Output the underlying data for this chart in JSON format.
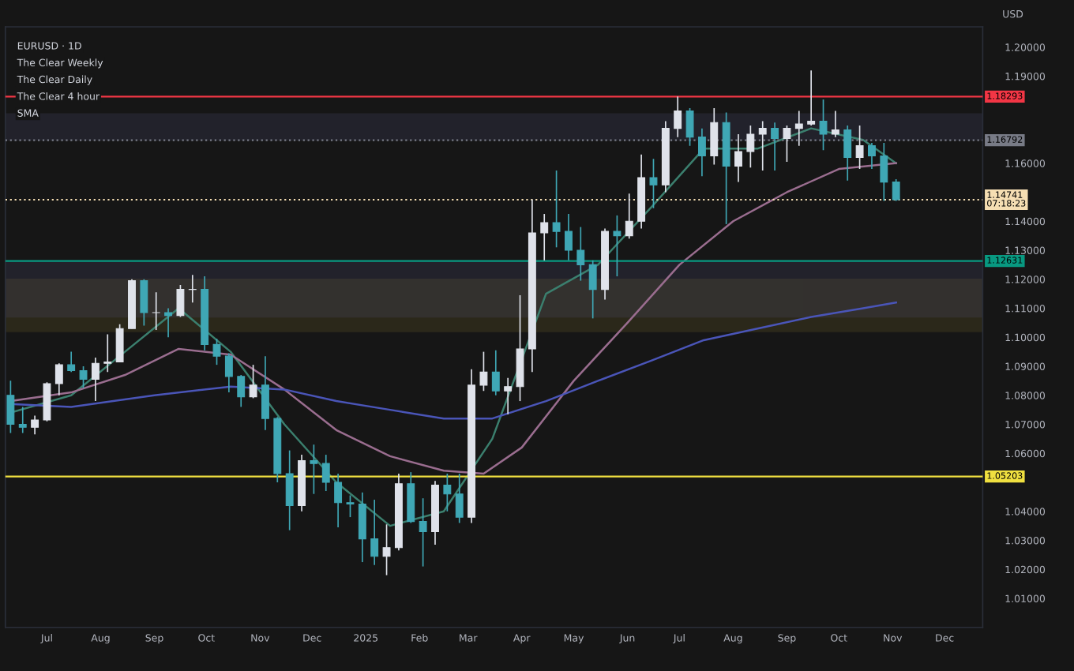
{
  "chart_data": {
    "type": "candlestick",
    "annotations": [
      "EURUSD · 1D",
      "The Clear Weekly",
      "The Clear Daily",
      "The Clear 4 hour",
      "SMA"
    ],
    "ylabel": "USD",
    "x": [
      "2024-06-10",
      "2024-06-17",
      "2024-06-24",
      "2024-07-01",
      "2024-07-08",
      "2024-07-15",
      "2024-07-22",
      "2024-07-29",
      "2024-08-05",
      "2024-08-12",
      "2024-08-19",
      "2024-08-26",
      "2024-09-02",
      "2024-09-09",
      "2024-09-16",
      "2024-09-23",
      "2024-09-30",
      "2024-10-07",
      "2024-10-14",
      "2024-10-21",
      "2024-10-28",
      "2024-11-04",
      "2024-11-11",
      "2024-11-18",
      "2024-11-25",
      "2024-12-02",
      "2024-12-09",
      "2024-12-16",
      "2024-12-23",
      "2024-12-30",
      "2025-01-06",
      "2025-01-13",
      "2025-01-20",
      "2025-01-27",
      "2025-02-03",
      "2025-02-10",
      "2025-02-17",
      "2025-02-24",
      "2025-03-03",
      "2025-03-10",
      "2025-03-17",
      "2025-03-24",
      "2025-03-31",
      "2025-04-07",
      "2025-04-14",
      "2025-04-21",
      "2025-04-28",
      "2025-05-05",
      "2025-05-12",
      "2025-05-19",
      "2025-05-26",
      "2025-06-02",
      "2025-06-09",
      "2025-06-16",
      "2025-06-23",
      "2025-06-30",
      "2025-07-07",
      "2025-07-14",
      "2025-07-21",
      "2025-07-28",
      "2025-08-04",
      "2025-08-11",
      "2025-08-18",
      "2025-08-25",
      "2025-09-01",
      "2025-09-08",
      "2025-09-15",
      "2025-09-22",
      "2025-09-29",
      "2025-10-06",
      "2025-10-13",
      "2025-10-20",
      "2025-10-27",
      "2025-11-03"
    ],
    "ohlc": [
      [
        1.08,
        1.085,
        1.067,
        1.07
      ],
      [
        1.07,
        1.076,
        1.067,
        1.069
      ],
      [
        1.069,
        1.073,
        1.0665,
        1.0715
      ],
      [
        1.0715,
        1.0845,
        1.071,
        1.084
      ],
      [
        1.084,
        1.091,
        1.08,
        1.0905
      ],
      [
        1.0905,
        1.095,
        1.088,
        1.0885
      ],
      [
        1.0885,
        1.09,
        1.0825,
        1.0855
      ],
      [
        1.0855,
        1.093,
        1.078,
        1.091
      ],
      [
        1.091,
        1.101,
        1.088,
        1.0915
      ],
      [
        1.0915,
        1.1045,
        1.0915,
        1.103
      ],
      [
        1.103,
        1.12,
        1.103,
        1.1195
      ],
      [
        1.1195,
        1.12,
        1.104,
        1.1085
      ],
      [
        1.1085,
        1.1155,
        1.1025,
        1.1085
      ],
      [
        1.1085,
        1.11,
        1.1,
        1.1075
      ],
      [
        1.1075,
        1.118,
        1.107,
        1.1165
      ],
      [
        1.1165,
        1.1215,
        1.112,
        1.1165
      ],
      [
        1.1165,
        1.121,
        1.0955,
        1.0975
      ],
      [
        1.0975,
        1.0995,
        1.0905,
        1.0935
      ],
      [
        1.0935,
        1.0945,
        1.081,
        1.0865
      ],
      [
        1.0865,
        1.087,
        1.076,
        1.0795
      ],
      [
        1.0795,
        1.0905,
        1.079,
        1.0835
      ],
      [
        1.0835,
        1.0935,
        1.068,
        1.072
      ],
      [
        1.072,
        1.0725,
        1.05,
        1.053
      ],
      [
        1.053,
        1.061,
        1.0335,
        1.042
      ],
      [
        1.042,
        1.0595,
        1.04,
        1.0575
      ],
      [
        1.0575,
        1.063,
        1.046,
        1.0565
      ],
      [
        1.0565,
        1.0595,
        1.047,
        1.05
      ],
      [
        1.05,
        1.053,
        1.0345,
        1.043
      ],
      [
        1.043,
        1.0455,
        1.038,
        1.0425
      ],
      [
        1.0425,
        1.0465,
        1.0225,
        1.0305
      ],
      [
        1.0305,
        1.044,
        1.0215,
        1.0245
      ],
      [
        1.0245,
        1.0355,
        1.018,
        1.0275
      ],
      [
        1.0275,
        1.053,
        1.0265,
        1.0495
      ],
      [
        1.0495,
        1.0535,
        1.036,
        1.0365
      ],
      [
        1.0365,
        1.0445,
        1.021,
        1.033
      ],
      [
        1.033,
        1.0505,
        1.0285,
        1.049
      ],
      [
        1.049,
        1.053,
        1.04,
        1.046
      ],
      [
        1.046,
        1.053,
        1.036,
        1.038
      ],
      [
        1.038,
        1.089,
        1.036,
        1.0835
      ],
      [
        1.0835,
        1.095,
        1.0815,
        1.088
      ],
      [
        1.088,
        1.0955,
        1.08,
        1.0815
      ],
      [
        1.0815,
        1.086,
        1.0735,
        1.083
      ],
      [
        1.083,
        1.1145,
        1.078,
        1.096
      ],
      [
        1.096,
        1.1475,
        1.088,
        1.136
      ],
      [
        1.136,
        1.1425,
        1.1265,
        1.1395
      ],
      [
        1.1395,
        1.1575,
        1.131,
        1.1365
      ],
      [
        1.1365,
        1.1425,
        1.1265,
        1.13
      ],
      [
        1.13,
        1.138,
        1.1195,
        1.125
      ],
      [
        1.125,
        1.1265,
        1.1065,
        1.1165
      ],
      [
        1.1165,
        1.1375,
        1.113,
        1.1365
      ],
      [
        1.1365,
        1.142,
        1.121,
        1.135
      ],
      [
        1.135,
        1.1495,
        1.134,
        1.14
      ],
      [
        1.14,
        1.163,
        1.1375,
        1.155
      ],
      [
        1.155,
        1.1615,
        1.1445,
        1.1525
      ],
      [
        1.1525,
        1.1745,
        1.15,
        1.172
      ],
      [
        1.172,
        1.183,
        1.169,
        1.178
      ],
      [
        1.178,
        1.179,
        1.166,
        1.169
      ],
      [
        1.169,
        1.172,
        1.1555,
        1.1625
      ],
      [
        1.1625,
        1.179,
        1.1595,
        1.174
      ],
      [
        1.174,
        1.1775,
        1.139,
        1.159
      ],
      [
        1.159,
        1.17,
        1.1535,
        1.164
      ],
      [
        1.164,
        1.173,
        1.1585,
        1.17
      ],
      [
        1.17,
        1.1745,
        1.1575,
        1.172
      ],
      [
        1.172,
        1.174,
        1.1575,
        1.1685
      ],
      [
        1.1685,
        1.173,
        1.1605,
        1.172
      ],
      [
        1.172,
        1.178,
        1.166,
        1.1735
      ],
      [
        1.1735,
        1.192,
        1.173,
        1.1745
      ],
      [
        1.1745,
        1.182,
        1.1645,
        1.17
      ],
      [
        1.17,
        1.178,
        1.169,
        1.1715
      ],
      [
        1.1715,
        1.173,
        1.154,
        1.162
      ],
      [
        1.162,
        1.173,
        1.158,
        1.166
      ],
      [
        1.166,
        1.167,
        1.158,
        1.1625
      ],
      [
        1.1625,
        1.167,
        1.147,
        1.1535
      ],
      [
        1.1535,
        1.1545,
        1.147,
        1.14741
      ]
    ],
    "colors": [
      "#3fa7b5",
      "#3fa7b5",
      "#dfe2ea",
      "#dfe2ea",
      "#dfe2ea",
      "#3fa7b5",
      "#3fa7b5",
      "#dfe2ea",
      "#dfe2ea",
      "#dfe2ea",
      "#dfe2ea",
      "#3fa7b5",
      "#dfe2ea",
      "#3fa7b5",
      "#dfe2ea",
      "#dfe2ea",
      "#3fa7b5",
      "#3fa7b5",
      "#3fa7b5",
      "#3fa7b5",
      "#dfe2ea",
      "#3fa7b5",
      "#3fa7b5",
      "#3fa7b5",
      "#dfe2ea",
      "#3fa7b5",
      "#3fa7b5",
      "#3fa7b5",
      "#3fa7b5",
      "#3fa7b5",
      "#3fa7b5",
      "#dfe2ea",
      "#dfe2ea",
      "#3fa7b5",
      "#3fa7b5",
      "#dfe2ea",
      "#3fa7b5",
      "#3fa7b5",
      "#dfe2ea",
      "#dfe2ea",
      "#3fa7b5",
      "#dfe2ea",
      "#dfe2ea",
      "#dfe2ea",
      "#dfe2ea",
      "#3fa7b5",
      "#3fa7b5",
      "#3fa7b5",
      "#3fa7b5",
      "#dfe2ea",
      "#3fa7b5",
      "#dfe2ea",
      "#dfe2ea",
      "#3fa7b5",
      "#dfe2ea",
      "#dfe2ea",
      "#3fa7b5",
      "#3fa7b5",
      "#dfe2ea",
      "#3fa7b5",
      "#dfe2ea",
      "#dfe2ea",
      "#dfe2ea",
      "#3fa7b5",
      "#dfe2ea",
      "#dfe2ea",
      "#dfe2ea",
      "#3fa7b5",
      "#dfe2ea",
      "#3fa7b5",
      "#dfe2ea",
      "#3fa7b5",
      "#3fa7b5",
      "#3fa7b5"
    ],
    "series": [
      {
        "type": "line",
        "color": "#3b7f6e",
        "x": [
          "2024-06-10",
          "2024-07-15",
          "2024-08-15",
          "2024-09-15",
          "2024-10-15",
          "2024-11-15",
          "2024-12-15",
          "2025-01-15",
          "2025-02-15",
          "2025-03-15",
          "2025-04-15",
          "2025-05-15",
          "2025-06-15",
          "2025-07-15",
          "2025-08-15",
          "2025-09-15",
          "2025-10-15",
          "2025-11-03"
        ],
        "values": [
          1.074,
          1.08,
          1.095,
          1.11,
          1.095,
          1.07,
          1.05,
          1.035,
          1.04,
          1.065,
          1.115,
          1.125,
          1.145,
          1.165,
          1.165,
          1.172,
          1.168,
          1.16
        ]
      },
      {
        "type": "line",
        "color": "#9a6d8f",
        "x": [
          "2024-06-10",
          "2024-07-15",
          "2024-08-15",
          "2024-09-15",
          "2024-10-15",
          "2024-11-15",
          "2024-12-15",
          "2025-01-15",
          "2025-02-15",
          "2025-03-10",
          "2025-04-01",
          "2025-05-01",
          "2025-06-01",
          "2025-07-01",
          "2025-08-01",
          "2025-09-01",
          "2025-10-01",
          "2025-11-03"
        ],
        "values": [
          1.078,
          1.081,
          1.087,
          1.096,
          1.094,
          1.082,
          1.068,
          1.059,
          1.054,
          1.053,
          1.062,
          1.085,
          1.105,
          1.125,
          1.14,
          1.15,
          1.158,
          1.16
        ]
      },
      {
        "type": "line",
        "color": "#4a55b8",
        "x": [
          "2024-06-10",
          "2024-07-15",
          "2024-09-01",
          "2024-10-15",
          "2024-11-15",
          "2024-12-15",
          "2025-01-15",
          "2025-02-15",
          "2025-03-15",
          "2025-04-15",
          "2025-05-15",
          "2025-06-15",
          "2025-07-15",
          "2025-08-15",
          "2025-09-15",
          "2025-10-15",
          "2025-11-03"
        ],
        "values": [
          1.077,
          1.076,
          1.08,
          1.083,
          1.082,
          1.078,
          1.075,
          1.072,
          1.072,
          1.078,
          1.085,
          1.092,
          1.099,
          1.103,
          1.107,
          1.11,
          1.112
        ]
      }
    ],
    "xlim": [
      "2024-06-07",
      "2025-12-23"
    ],
    "xticks": [
      {
        "value": "2024-07-01",
        "label": "Jul"
      },
      {
        "value": "2024-08-01",
        "label": "Aug"
      },
      {
        "value": "2024-09-01",
        "label": "Sep"
      },
      {
        "value": "2024-10-01",
        "label": "Oct"
      },
      {
        "value": "2024-11-01",
        "label": "Nov"
      },
      {
        "value": "2024-12-01",
        "label": "Dec"
      },
      {
        "value": "2025-01-01",
        "label": "2025"
      },
      {
        "value": "2025-02-01",
        "label": "Feb"
      },
      {
        "value": "2025-03-01",
        "label": "Mar"
      },
      {
        "value": "2025-04-01",
        "label": "Apr"
      },
      {
        "value": "2025-05-01",
        "label": "May"
      },
      {
        "value": "2025-06-01",
        "label": "Jun"
      },
      {
        "value": "2025-07-01",
        "label": "Jul"
      },
      {
        "value": "2025-08-01",
        "label": "Aug"
      },
      {
        "value": "2025-09-01",
        "label": "Sep"
      },
      {
        "value": "2025-10-01",
        "label": "Oct"
      },
      {
        "value": "2025-11-01",
        "label": "Nov"
      },
      {
        "value": "2025-12-01",
        "label": "Dec"
      }
    ],
    "ylim": [
      1.0,
      1.207
    ],
    "yticks": [
      {
        "value": 1.01,
        "label": "1.01000"
      },
      {
        "value": 1.02,
        "label": "1.02000"
      },
      {
        "value": 1.03,
        "label": "1.03000"
      },
      {
        "value": 1.04,
        "label": "1.04000"
      },
      {
        "value": 1.06,
        "label": "1.06000"
      },
      {
        "value": 1.07,
        "label": "1.07000"
      },
      {
        "value": 1.08,
        "label": "1.08000"
      },
      {
        "value": 1.09,
        "label": "1.09000"
      },
      {
        "value": 1.1,
        "label": "1.10000"
      },
      {
        "value": 1.11,
        "label": "1.11000"
      },
      {
        "value": 1.12,
        "label": "1.12000"
      },
      {
        "value": 1.13,
        "label": "1.13000"
      },
      {
        "value": 1.14,
        "label": "1.14000"
      },
      {
        "value": 1.16,
        "label": "1.16000"
      },
      {
        "value": 1.19,
        "label": "1.19000"
      },
      {
        "value": 1.2,
        "label": "1.20000"
      }
    ],
    "ref_lines": [
      {
        "axis": "y",
        "value": 1.18293,
        "label": "1.18293",
        "color": "#f23645"
      },
      {
        "axis": "y",
        "value": 1.16792,
        "label": "1.16792",
        "color": "#787b86",
        "line_style": "dotted"
      },
      {
        "axis": "y",
        "value": 1.14741,
        "label": "1.14741\n07:18:23",
        "color": "#f5deb3",
        "line_style": "dotted"
      },
      {
        "axis": "y",
        "value": 1.12631,
        "label": "1.12631",
        "color": "#089981"
      },
      {
        "axis": "y",
        "value": 1.05203,
        "label": "1.05203",
        "color": "#f0e040"
      }
    ],
    "bands": [
      {
        "axis": "y",
        "from": 1.102,
        "to": 1.12,
        "color": "#8a7a30"
      },
      {
        "axis": "y",
        "from": 1.107,
        "to": 1.1263,
        "color": "#5a5a8a"
      },
      {
        "axis": "y",
        "from": 1.168,
        "to": 1.177,
        "color": "#5a5a8a"
      }
    ]
  }
}
